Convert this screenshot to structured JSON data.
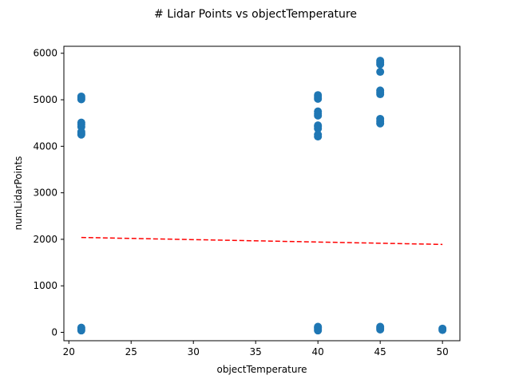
{
  "chart_data": {
    "type": "scatter",
    "title": "# Lidar Points vs objectTemperature",
    "xlabel": "objectTemperature",
    "ylabel": "numLidarPoints",
    "xlim": [
      19.6,
      51.4
    ],
    "ylim": [
      -180,
      6150
    ],
    "xticks": [
      20,
      25,
      30,
      35,
      40,
      45,
      50
    ],
    "yticks": [
      0,
      1000,
      2000,
      3000,
      4000,
      5000,
      6000
    ],
    "xtick_labels": [
      "20",
      "25",
      "30",
      "35",
      "40",
      "45",
      "50"
    ],
    "ytick_labels": [
      "0",
      "1000",
      "2000",
      "3000",
      "4000",
      "5000",
      "6000"
    ],
    "grid": false,
    "series": [
      {
        "name": "observations",
        "kind": "scatter",
        "color": "#1f77b4",
        "points": [
          [
            21,
            5010
          ],
          [
            21,
            5040
          ],
          [
            21,
            5070
          ],
          [
            21,
            4420
          ],
          [
            21,
            4470
          ],
          [
            21,
            4510
          ],
          [
            21,
            4250
          ],
          [
            21,
            4280
          ],
          [
            21,
            4310
          ],
          [
            21,
            40
          ],
          [
            21,
            70
          ],
          [
            21,
            100
          ],
          [
            40,
            5020
          ],
          [
            40,
            5060
          ],
          [
            40,
            5100
          ],
          [
            40,
            4660
          ],
          [
            40,
            4700
          ],
          [
            40,
            4750
          ],
          [
            40,
            4380
          ],
          [
            40,
            4420
          ],
          [
            40,
            4450
          ],
          [
            40,
            4210
          ],
          [
            40,
            4250
          ],
          [
            40,
            40
          ],
          [
            40,
            70
          ],
          [
            40,
            100
          ],
          [
            40,
            120
          ],
          [
            45,
            5760
          ],
          [
            45,
            5800
          ],
          [
            45,
            5840
          ],
          [
            45,
            5600
          ],
          [
            45,
            5120
          ],
          [
            45,
            5160
          ],
          [
            45,
            5200
          ],
          [
            45,
            4490
          ],
          [
            45,
            4540
          ],
          [
            45,
            4590
          ],
          [
            45,
            60
          ],
          [
            45,
            90
          ],
          [
            45,
            120
          ],
          [
            50,
            50
          ],
          [
            50,
            80
          ]
        ]
      },
      {
        "name": "trend",
        "kind": "line",
        "style": "dashed",
        "color": "#ff0000",
        "x": [
          21,
          50
        ],
        "y": [
          2040,
          1890
        ]
      }
    ]
  }
}
